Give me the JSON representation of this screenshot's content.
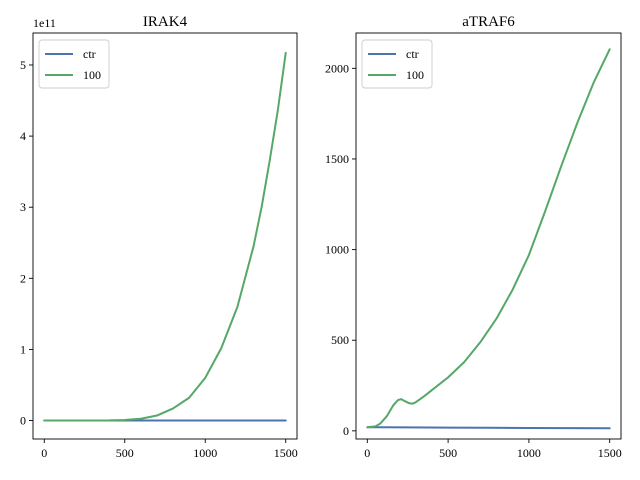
{
  "chart_data": [
    {
      "type": "line",
      "title": "IRAK4",
      "xlabel": "",
      "ylabel": "",
      "xlim": [
        -70,
        1570
      ],
      "ylim": [
        -26000000000.0,
        545000000000.0
      ],
      "y_offset_label": "1e11",
      "y_scale": 100000000000.0,
      "xticks": [
        0,
        500,
        1000,
        1500
      ],
      "xtick_labels": [
        "0",
        "500",
        "1000",
        "1500"
      ],
      "yticks": [
        0,
        100000000000.0,
        200000000000.0,
        300000000000.0,
        400000000000.0,
        500000000000.0
      ],
      "ytick_labels": [
        "0",
        "1",
        "2",
        "3",
        "4",
        "5"
      ],
      "legend_position": "top-left",
      "series": [
        {
          "name": "ctr",
          "color": "#4c72b0",
          "x": [
            0,
            250,
            500,
            750,
            1000,
            1250,
            1500
          ],
          "y": [
            0,
            0,
            0,
            0,
            0,
            0,
            0
          ]
        },
        {
          "name": "100",
          "color": "#55a868",
          "x": [
            0,
            200,
            400,
            500,
            600,
            700,
            800,
            900,
            1000,
            1100,
            1200,
            1300,
            1350,
            1400,
            1450,
            1500
          ],
          "y": [
            0,
            0,
            200000000.0,
            800000000.0,
            2500000000.0,
            7000000000.0,
            17000000000.0,
            32000000000.0,
            60000000000.0,
            102000000000.0,
            160000000000.0,
            245000000000.0,
            300000000000.0,
            365000000000.0,
            435000000000.0,
            517000000000.0
          ]
        }
      ]
    },
    {
      "type": "line",
      "title": "aTRAF6",
      "xlabel": "",
      "ylabel": "",
      "xlim": [
        -70,
        1570
      ],
      "ylim": [
        -45,
        2195
      ],
      "xticks": [
        0,
        500,
        1000,
        1500
      ],
      "xtick_labels": [
        "0",
        "500",
        "1000",
        "1500"
      ],
      "yticks": [
        0,
        500,
        1000,
        1500,
        2000
      ],
      "ytick_labels": [
        "0",
        "500",
        "1000",
        "1500",
        "2000"
      ],
      "legend_position": "top-left",
      "series": [
        {
          "name": "ctr",
          "color": "#4c72b0",
          "x": [
            0,
            250,
            500,
            750,
            1000,
            1250,
            1500
          ],
          "y": [
            20,
            19,
            18,
            17,
            16,
            15,
            14
          ]
        },
        {
          "name": "100",
          "color": "#55a868",
          "x": [
            0,
            50,
            80,
            120,
            160,
            190,
            210,
            230,
            260,
            280,
            300,
            350,
            400,
            500,
            600,
            700,
            800,
            900,
            1000,
            1100,
            1200,
            1300,
            1400,
            1500
          ],
          "y": [
            20,
            25,
            40,
            80,
            140,
            170,
            175,
            165,
            152,
            150,
            158,
            190,
            225,
            295,
            380,
            490,
            620,
            780,
            970,
            1210,
            1460,
            1700,
            1920,
            2105
          ]
        }
      ]
    }
  ]
}
